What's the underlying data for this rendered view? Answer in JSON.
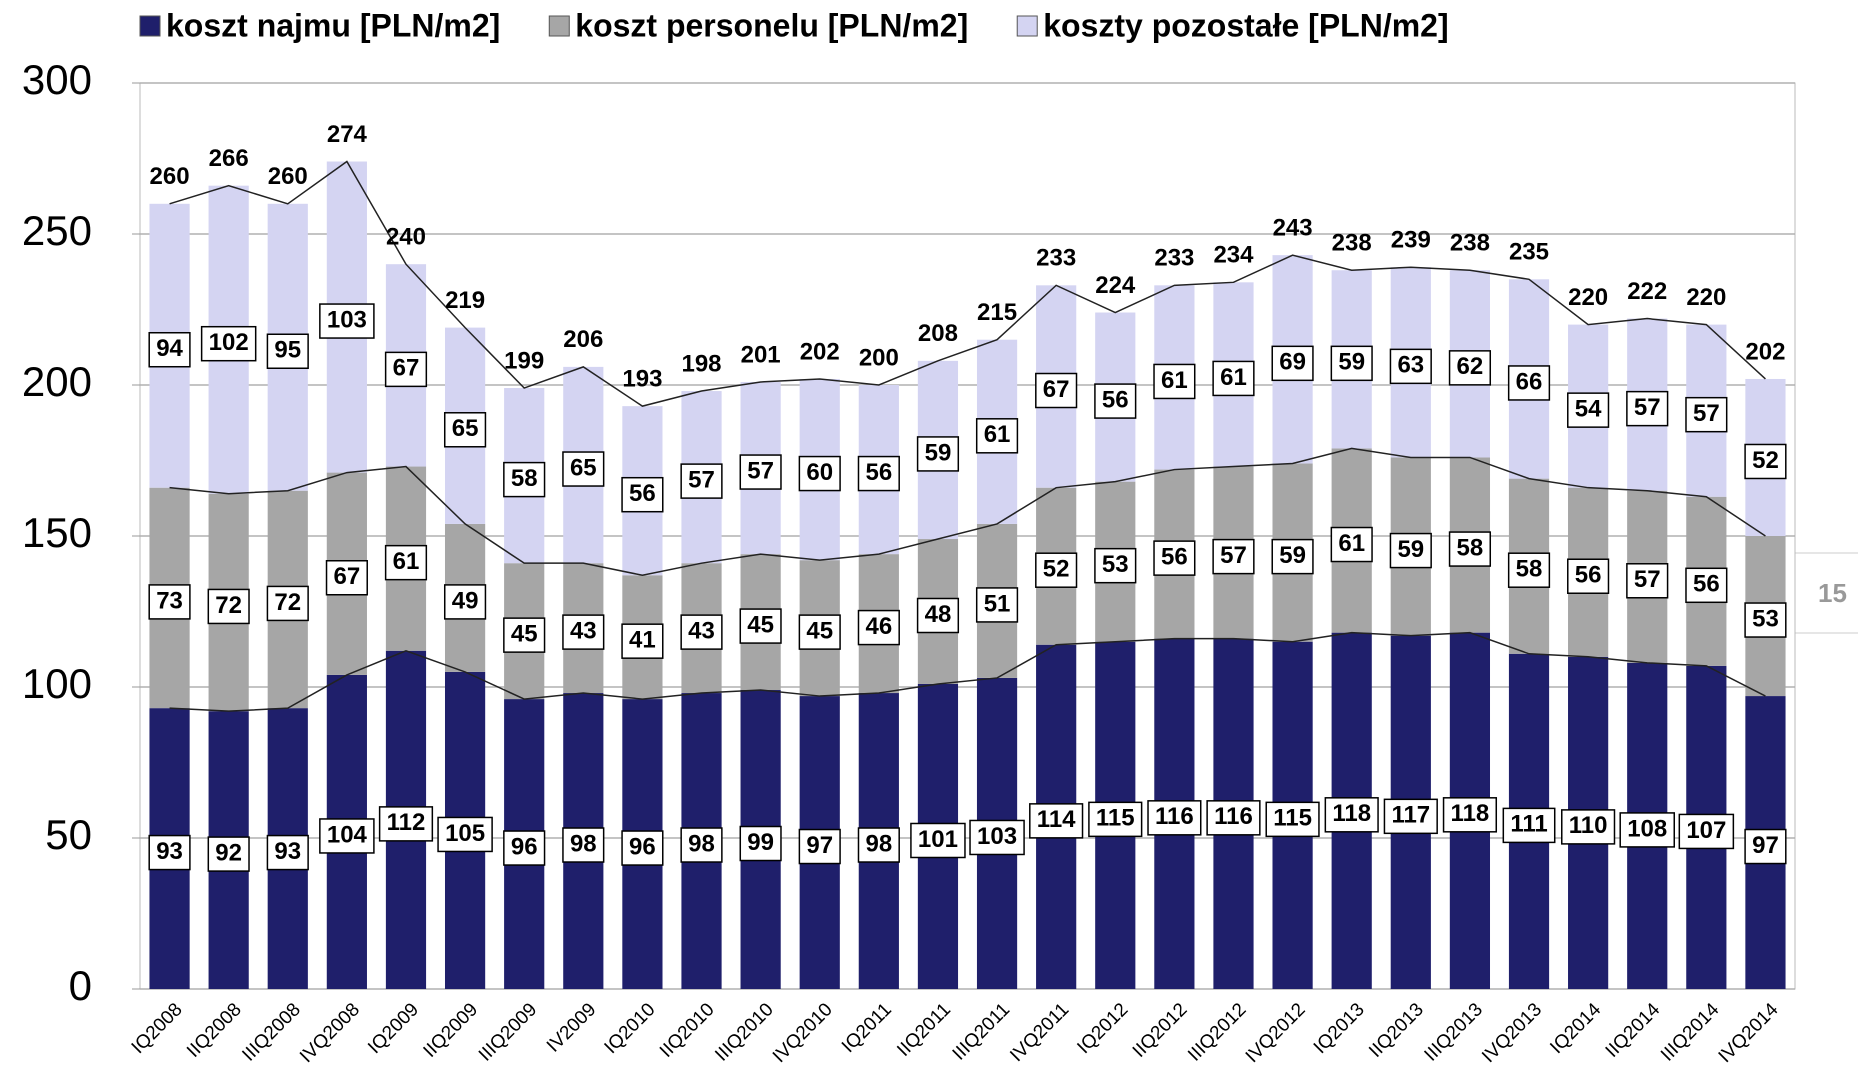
{
  "chart_data": {
    "type": "stacked-bar",
    "categories": [
      "IQ2008",
      "IIQ2008",
      "IIIQ2008",
      "IVQ2008",
      "IQ2009",
      "IIQ2009",
      "IIIQ2009",
      "IV2009",
      "IQ2010",
      "IIQ2010",
      "IIIQ2010",
      "IVQ2010",
      "IQ2011",
      "IIQ2011",
      "IIIQ2011",
      "IVQ2011",
      "IQ2012",
      "IIQ2012",
      "IIIQ2012",
      "IVQ2012",
      "IQ2013",
      "IIQ2013",
      "IIIQ2013",
      "IVQ2013",
      "IQ2014",
      "IIQ2014",
      "IIIQ2014",
      "IVQ2014"
    ],
    "series": [
      {
        "name": "koszt najmu [PLN/m2]",
        "color": "#1f1f6b",
        "values": [
          93,
          92,
          93,
          104,
          112,
          105,
          96,
          98,
          96,
          98,
          99,
          97,
          98,
          101,
          103,
          114,
          115,
          116,
          116,
          115,
          118,
          117,
          118,
          111,
          110,
          108,
          107,
          97
        ]
      },
      {
        "name": "koszt personelu [PLN/m2]",
        "color": "#a6a6a6",
        "values": [
          73,
          72,
          72,
          67,
          61,
          49,
          45,
          43,
          41,
          43,
          45,
          45,
          46,
          48,
          51,
          52,
          53,
          56,
          57,
          59,
          61,
          59,
          58,
          58,
          56,
          57,
          56,
          53
        ]
      },
      {
        "name": "koszty pozostałe [PLN/m2]",
        "color": "#d4d4f2",
        "values": [
          94,
          102,
          95,
          103,
          67,
          65,
          58,
          65,
          56,
          57,
          57,
          60,
          56,
          59,
          61,
          67,
          56,
          61,
          61,
          69,
          59,
          63,
          62,
          66,
          54,
          57,
          57,
          52
        ]
      }
    ],
    "totals": [
      260,
      266,
      260,
      274,
      240,
      219,
      199,
      206,
      193,
      198,
      201,
      202,
      200,
      208,
      215,
      233,
      224,
      233,
      234,
      243,
      238,
      239,
      238,
      235,
      220,
      222,
      220,
      202
    ],
    "ylim": [
      0,
      300
    ],
    "yticks": [
      0,
      50,
      100,
      150,
      200,
      250,
      300
    ],
    "grid": true,
    "legend": "top",
    "page_number": "15"
  }
}
